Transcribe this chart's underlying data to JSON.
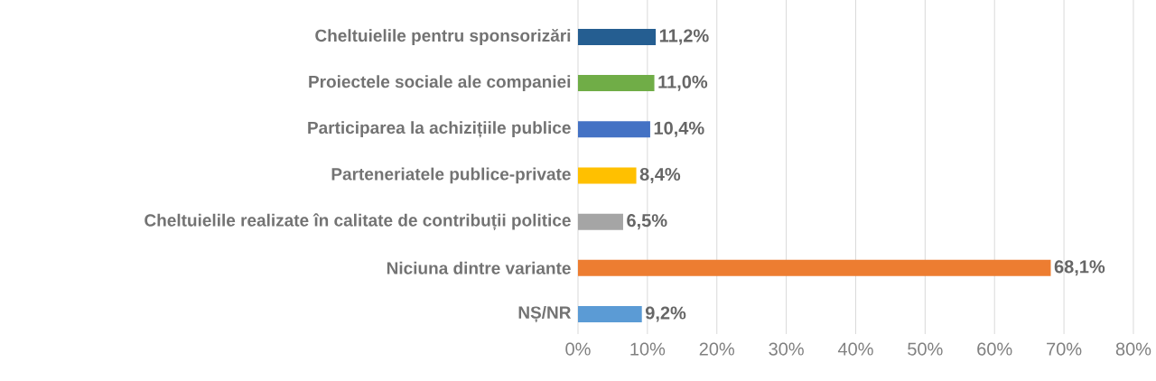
{
  "chart_data": {
    "type": "bar",
    "orientation": "horizontal",
    "categories": [
      "Cheltuielile pentru sponsorizări",
      "Proiectele sociale ale companiei",
      "Participarea la achizițiile publice",
      "Parteneriatele publice-private",
      "Cheltuielile realizate în calitate de contribuții politice",
      "Niciuna dintre variante",
      "NȘ/NR"
    ],
    "values": [
      11.2,
      11.0,
      10.4,
      8.4,
      6.5,
      68.1,
      9.2
    ],
    "colors": [
      "#255e91",
      "#70ad47",
      "#4472c4",
      "#ffc000",
      "#a5a5a5",
      "#ed7d31",
      "#5b9bd5"
    ],
    "value_labels": [
      "11,2%",
      "11,0%",
      "10,4%",
      "8,4%",
      "6,5%",
      "68,1%",
      "9,2%"
    ],
    "xlim": [
      0,
      80
    ],
    "xticks": [
      {
        "value": 0,
        "label": "0%"
      },
      {
        "value": 10,
        "label": "10%"
      },
      {
        "value": 20,
        "label": "20%"
      },
      {
        "value": 30,
        "label": "30%"
      },
      {
        "value": 40,
        "label": "40%"
      },
      {
        "value": 50,
        "label": "50%"
      },
      {
        "value": 60,
        "label": "60%"
      },
      {
        "value": 70,
        "label": "70%"
      },
      {
        "value": 80,
        "label": "80%"
      }
    ],
    "grid": "x"
  }
}
